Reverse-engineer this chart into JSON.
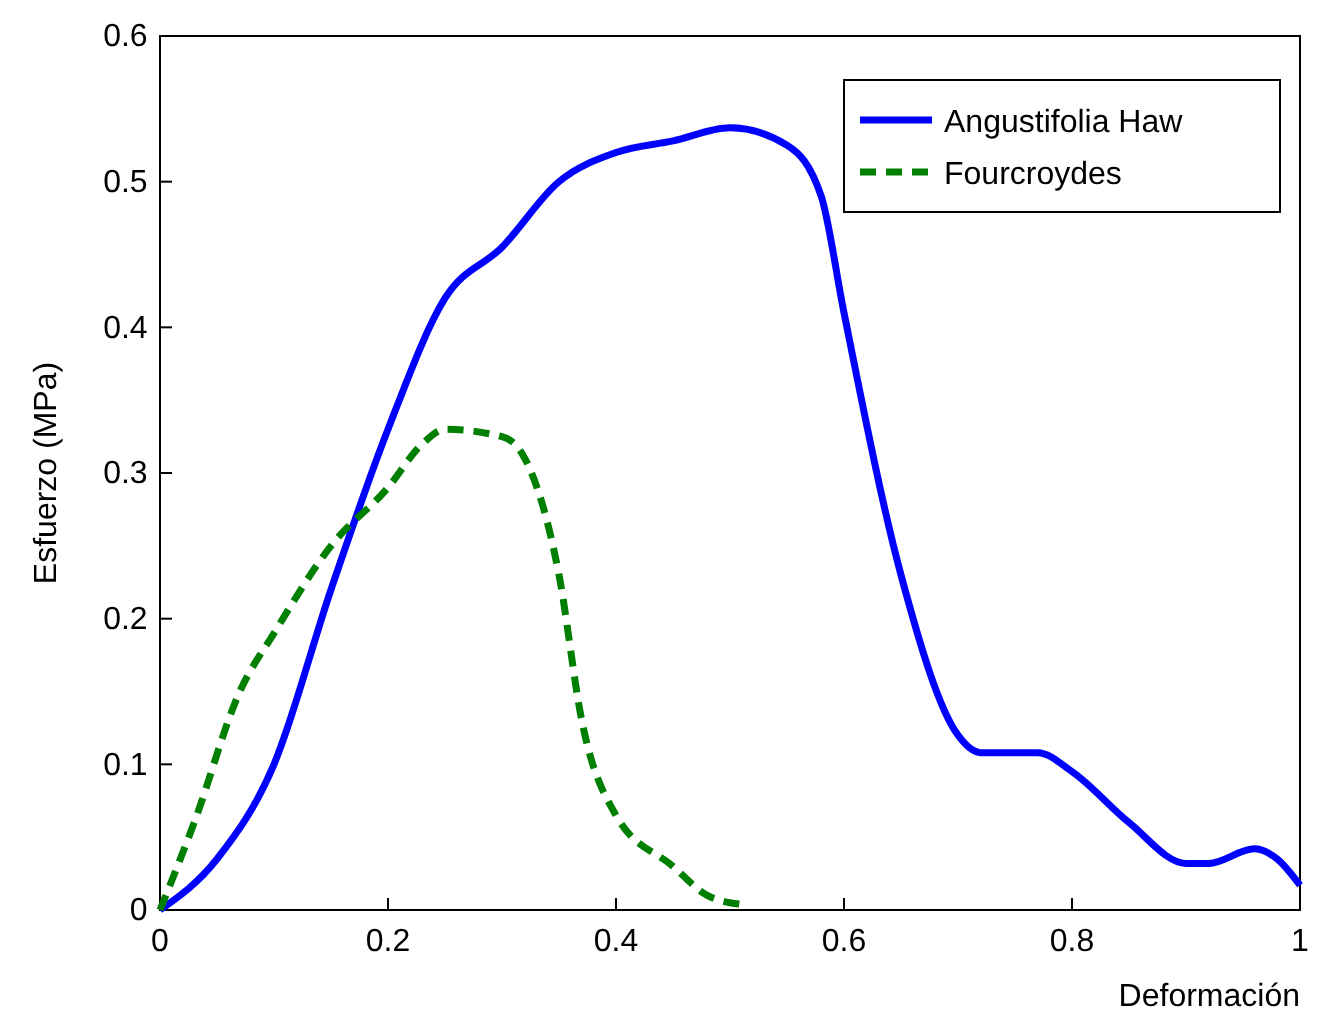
{
  "chart_data": {
    "type": "line",
    "xlabel": "Deformación",
    "ylabel": "Esfuerzo (MPa)",
    "xlim": [
      0,
      1
    ],
    "ylim": [
      0,
      0.6
    ],
    "xticks": [
      0,
      0.2,
      0.4,
      0.6,
      0.8,
      1
    ],
    "yticks": [
      0,
      0.1,
      0.2,
      0.3,
      0.4,
      0.5,
      0.6
    ],
    "grid": false,
    "legend": "top right",
    "series": [
      {
        "name": "Angustifolia Haw",
        "color": "#0000ff",
        "line_style": "solid",
        "x": [
          0,
          0.05,
          0.1,
          0.15,
          0.2,
          0.25,
          0.3,
          0.35,
          0.4,
          0.45,
          0.5,
          0.55,
          0.58,
          0.6,
          0.65,
          0.7,
          0.72,
          0.77,
          0.8,
          0.85,
          0.9,
          0.92,
          0.96,
          0.98,
          1
        ],
        "values": [
          0,
          0.035,
          0.1,
          0.22,
          0.33,
          0.42,
          0.455,
          0.5,
          0.52,
          0.528,
          0.537,
          0.525,
          0.49,
          0.41,
          0.23,
          0.12,
          0.108,
          0.108,
          0.095,
          0.06,
          0.032,
          0.032,
          0.042,
          0.035,
          0.017
        ]
      },
      {
        "name": "Fourcroydes",
        "color": "#007f00",
        "line_style": "dashed",
        "x": [
          0,
          0.03,
          0.07,
          0.1,
          0.15,
          0.2,
          0.23,
          0.25,
          0.3,
          0.32,
          0.35,
          0.37,
          0.4,
          0.45,
          0.48,
          0.5,
          0.51
        ],
        "values": [
          0,
          0.06,
          0.15,
          0.19,
          0.25,
          0.29,
          0.32,
          0.33,
          0.325,
          0.31,
          0.23,
          0.13,
          0.065,
          0.03,
          0.01,
          0.005,
          0.004
        ]
      }
    ]
  }
}
